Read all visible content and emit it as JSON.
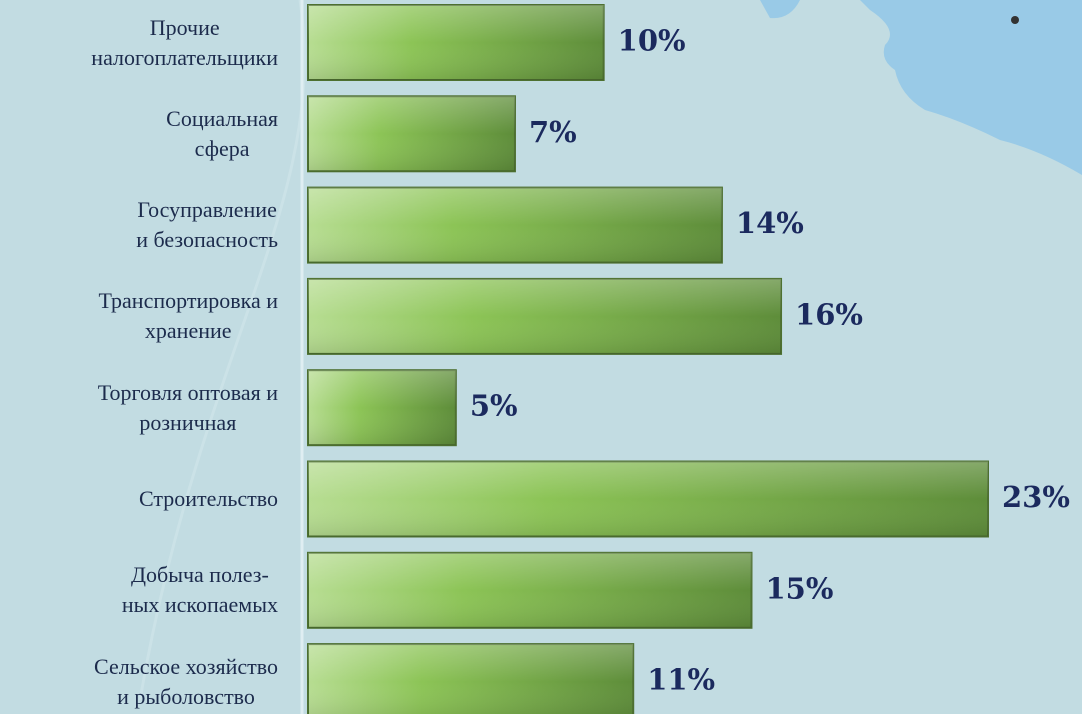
{
  "chart_data": {
    "type": "barh",
    "categories": [
      [
        "Прочие",
        "налогоплательщики"
      ],
      [
        "Социальная",
        "сфера"
      ],
      [
        "Госуправление",
        "и безопасность"
      ],
      [
        "Транспортировка и",
        "хранение"
      ],
      [
        "Торговля оптовая и",
        "розничная"
      ],
      [
        "Строительство"
      ],
      [
        "Добыча полез-",
        "ных ископаемых"
      ],
      [
        "Сельское хозяйство",
        "и рыболовство"
      ]
    ],
    "values": [
      10,
      7,
      14,
      16,
      5,
      23,
      15,
      11
    ],
    "value_labels": [
      "10%",
      "7%",
      "14%",
      "16%",
      "5%",
      "23%",
      "15%",
      "11%"
    ],
    "color": "#8cc456"
  }
}
